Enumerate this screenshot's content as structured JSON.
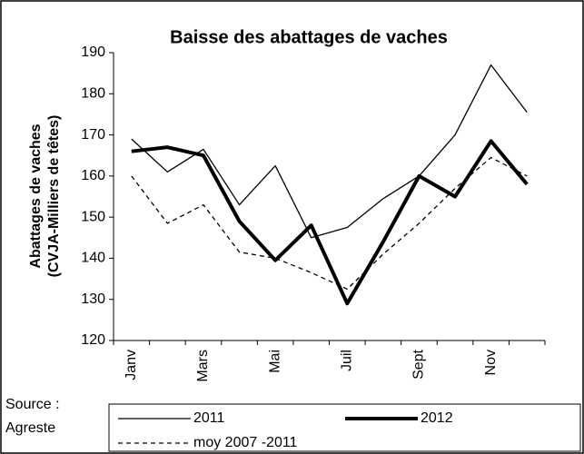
{
  "chart_data": {
    "type": "line",
    "title": "Baisse des abattages de vaches",
    "y_label": [
      "Abattages de vaches",
      "(CVJA-Milliers de  têtes)"
    ],
    "source": [
      "Source :",
      "Agreste"
    ],
    "categories": [
      "Janv",
      null,
      "Mars",
      null,
      "Mai",
      null,
      "Juil",
      null,
      "Sept",
      null,
      "Nov",
      null
    ],
    "series": [
      {
        "name": "2011",
        "color": "#000000",
        "width": 1.3,
        "dash": false,
        "values": [
          169,
          161,
          166.5,
          153,
          162.5,
          145,
          147.5,
          154.5,
          160,
          170,
          187,
          175.5
        ]
      },
      {
        "name": "2012",
        "color": "#000000",
        "width": 4,
        "dash": false,
        "values": [
          166,
          167,
          165,
          149,
          139.5,
          148,
          129,
          144,
          160,
          155,
          168.5,
          158
        ]
      },
      {
        "name": "moy 2007 -2011",
        "color": "#000000",
        "width": 1.3,
        "dash": true,
        "values": [
          160,
          148.5,
          153,
          141.5,
          140,
          136.5,
          132.5,
          141,
          148.5,
          157,
          164.5,
          160
        ]
      }
    ],
    "ylim": [
      120,
      190
    ],
    "yticks": [
      120,
      130,
      140,
      150,
      160,
      170,
      180,
      190
    ],
    "grid": false
  }
}
